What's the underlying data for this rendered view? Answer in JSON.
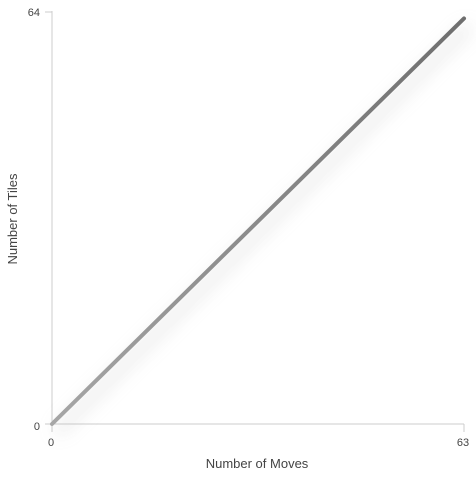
{
  "chart_data": {
    "type": "line",
    "title": "",
    "xlabel": "Number of Moves",
    "ylabel": "Number of Tiles",
    "xlim": [
      0,
      63
    ],
    "ylim": [
      0,
      64
    ],
    "x_ticks": [
      "0",
      "63"
    ],
    "y_ticks": [
      "0",
      "64"
    ],
    "grid": false,
    "legend": "none",
    "series": [
      {
        "x": [
          0,
          63
        ],
        "y": [
          0,
          63
        ],
        "color_start": "#a6a6a6",
        "color_end": "#6e6e6e"
      }
    ],
    "axis_color": "#cccccc",
    "shadow_color": "#b0b0b0"
  }
}
